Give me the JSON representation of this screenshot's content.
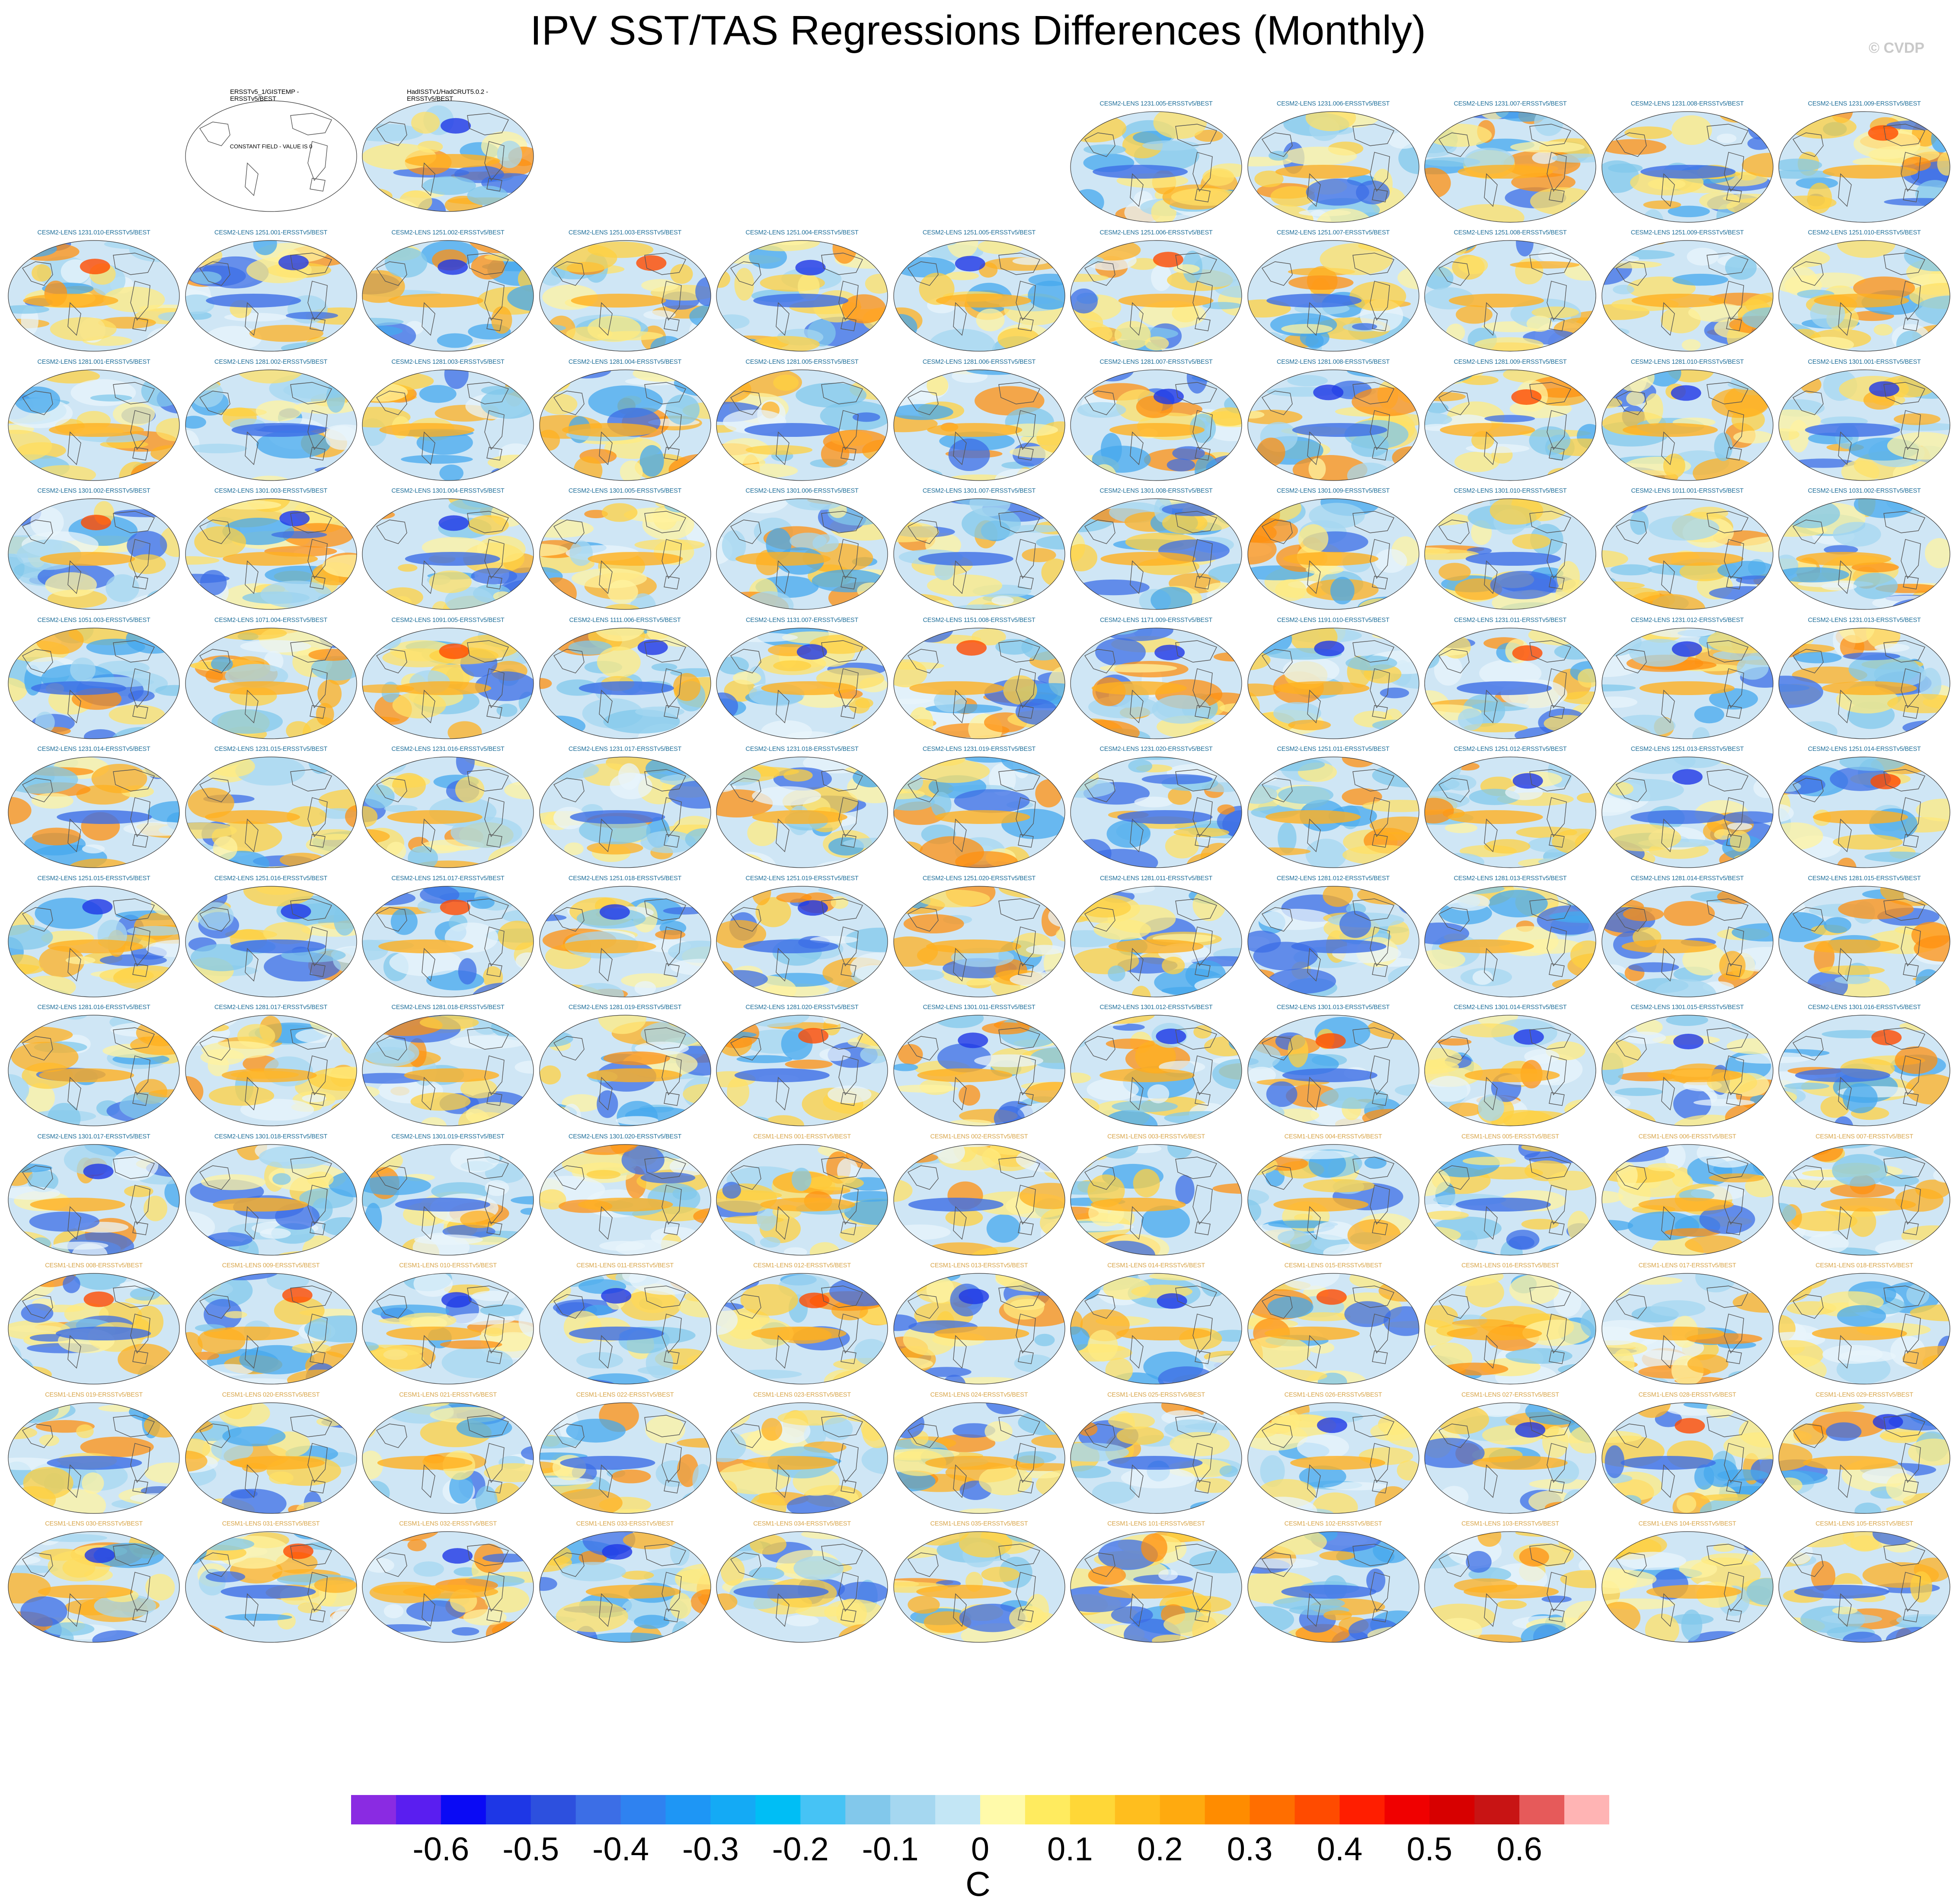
{
  "title": "IPV SST/TAS Regressions Differences (Monthly)",
  "watermark": "© CVDP",
  "colors": {
    "cesm2_label": "#1f6f9a",
    "cesm1_label": "#d8a54a",
    "obs_label": "#000000"
  },
  "observations": [
    {
      "label": "ERSSTv5_1/GISTEMP -\nERSSTv5/BEST",
      "overlay": "CONSTANT FIELD - VALUE IS 0"
    },
    {
      "label": "HadISSTv1/HadCRUT5.0.2 -\nERSSTv5/BEST"
    }
  ],
  "panels": [
    "CESM2-LENS 1231.005-ERSSTv5/BEST",
    "CESM2-LENS 1231.006-ERSSTv5/BEST",
    "CESM2-LENS 1231.007-ERSSTv5/BEST",
    "CESM2-LENS 1231.008-ERSSTv5/BEST",
    "CESM2-LENS 1231.009-ERSSTv5/BEST",
    "CESM2-LENS 1231.010-ERSSTv5/BEST",
    "CESM2-LENS 1251.001-ERSSTv5/BEST",
    "CESM2-LENS 1251.002-ERSSTv5/BEST",
    "CESM2-LENS 1251.003-ERSSTv5/BEST",
    "CESM2-LENS 1251.004-ERSSTv5/BEST",
    "CESM2-LENS 1251.005-ERSSTv5/BEST",
    "CESM2-LENS 1251.006-ERSSTv5/BEST",
    "CESM2-LENS 1251.007-ERSSTv5/BEST",
    "CESM2-LENS 1251.008-ERSSTv5/BEST",
    "CESM2-LENS 1251.009-ERSSTv5/BEST",
    "CESM2-LENS 1251.010-ERSSTv5/BEST",
    "CESM2-LENS 1281.001-ERSSTv5/BEST",
    "CESM2-LENS 1281.002-ERSSTv5/BEST",
    "CESM2-LENS 1281.003-ERSSTv5/BEST",
    "CESM2-LENS 1281.004-ERSSTv5/BEST",
    "CESM2-LENS 1281.005-ERSSTv5/BEST",
    "CESM2-LENS 1281.006-ERSSTv5/BEST",
    "CESM2-LENS 1281.007-ERSSTv5/BEST",
    "CESM2-LENS 1281.008-ERSSTv5/BEST",
    "CESM2-LENS 1281.009-ERSSTv5/BEST",
    "CESM2-LENS 1281.010-ERSSTv5/BEST",
    "CESM2-LENS 1301.001-ERSSTv5/BEST",
    "CESM2-LENS 1301.002-ERSSTv5/BEST",
    "CESM2-LENS 1301.003-ERSSTv5/BEST",
    "CESM2-LENS 1301.004-ERSSTv5/BEST",
    "CESM2-LENS 1301.005-ERSSTv5/BEST",
    "CESM2-LENS 1301.006-ERSSTv5/BEST",
    "CESM2-LENS 1301.007-ERSSTv5/BEST",
    "CESM2-LENS 1301.008-ERSSTv5/BEST",
    "CESM2-LENS 1301.009-ERSSTv5/BEST",
    "CESM2-LENS 1301.010-ERSSTv5/BEST",
    "CESM2-LENS 1011.001-ERSSTv5/BEST",
    "CESM2-LENS 1031.002-ERSSTv5/BEST",
    "CESM2-LENS 1051.003-ERSSTv5/BEST",
    "CESM2-LENS 1071.004-ERSSTv5/BEST",
    "CESM2-LENS 1091.005-ERSSTv5/BEST",
    "CESM2-LENS 1111.006-ERSSTv5/BEST",
    "CESM2-LENS 1131.007-ERSSTv5/BEST",
    "CESM2-LENS 1151.008-ERSSTv5/BEST",
    "CESM2-LENS 1171.009-ERSSTv5/BEST",
    "CESM2-LENS 1191.010-ERSSTv5/BEST",
    "CESM2-LENS 1231.011-ERSSTv5/BEST",
    "CESM2-LENS 1231.012-ERSSTv5/BEST",
    "CESM2-LENS 1231.013-ERSSTv5/BEST",
    "CESM2-LENS 1231.014-ERSSTv5/BEST",
    "CESM2-LENS 1231.015-ERSSTv5/BEST",
    "CESM2-LENS 1231.016-ERSSTv5/BEST",
    "CESM2-LENS 1231.017-ERSSTv5/BEST",
    "CESM2-LENS 1231.018-ERSSTv5/BEST",
    "CESM2-LENS 1231.019-ERSSTv5/BEST",
    "CESM2-LENS 1231.020-ERSSTv5/BEST",
    "CESM2-LENS 1251.011-ERSSTv5/BEST",
    "CESM2-LENS 1251.012-ERSSTv5/BEST",
    "CESM2-LENS 1251.013-ERSSTv5/BEST",
    "CESM2-LENS 1251.014-ERSSTv5/BEST",
    "CESM2-LENS 1251.015-ERSSTv5/BEST",
    "CESM2-LENS 1251.016-ERSSTv5/BEST",
    "CESM2-LENS 1251.017-ERSSTv5/BEST",
    "CESM2-LENS 1251.018-ERSSTv5/BEST",
    "CESM2-LENS 1251.019-ERSSTv5/BEST",
    "CESM2-LENS 1251.020-ERSSTv5/BEST",
    "CESM2-LENS 1281.011-ERSSTv5/BEST",
    "CESM2-LENS 1281.012-ERSSTv5/BEST",
    "CESM2-LENS 1281.013-ERSSTv5/BEST",
    "CESM2-LENS 1281.014-ERSSTv5/BEST",
    "CESM2-LENS 1281.015-ERSSTv5/BEST",
    "CESM2-LENS 1281.016-ERSSTv5/BEST",
    "CESM2-LENS 1281.017-ERSSTv5/BEST",
    "CESM2-LENS 1281.018-ERSSTv5/BEST",
    "CESM2-LENS 1281.019-ERSSTv5/BEST",
    "CESM2-LENS 1281.020-ERSSTv5/BEST",
    "CESM2-LENS 1301.011-ERSSTv5/BEST",
    "CESM2-LENS 1301.012-ERSSTv5/BEST",
    "CESM2-LENS 1301.013-ERSSTv5/BEST",
    "CESM2-LENS 1301.014-ERSSTv5/BEST",
    "CESM2-LENS 1301.015-ERSSTv5/BEST",
    "CESM2-LENS 1301.016-ERSSTv5/BEST",
    "CESM2-LENS 1301.017-ERSSTv5/BEST",
    "CESM2-LENS 1301.018-ERSSTv5/BEST",
    "CESM2-LENS 1301.019-ERSSTv5/BEST",
    "CESM2-LENS 1301.020-ERSSTv5/BEST",
    "CESM1-LENS 001-ERSSTv5/BEST",
    "CESM1-LENS 002-ERSSTv5/BEST",
    "CESM1-LENS 003-ERSSTv5/BEST",
    "CESM1-LENS 004-ERSSTv5/BEST",
    "CESM1-LENS 005-ERSSTv5/BEST",
    "CESM1-LENS 006-ERSSTv5/BEST",
    "CESM1-LENS 007-ERSSTv5/BEST",
    "CESM1-LENS 008-ERSSTv5/BEST",
    "CESM1-LENS 009-ERSSTv5/BEST",
    "CESM1-LENS 010-ERSSTv5/BEST",
    "CESM1-LENS 011-ERSSTv5/BEST",
    "CESM1-LENS 012-ERSSTv5/BEST",
    "CESM1-LENS 013-ERSSTv5/BEST",
    "CESM1-LENS 014-ERSSTv5/BEST",
    "CESM1-LENS 015-ERSSTv5/BEST",
    "CESM1-LENS 016-ERSSTv5/BEST",
    "CESM1-LENS 017-ERSSTv5/BEST",
    "CESM1-LENS 018-ERSSTv5/BEST",
    "CESM1-LENS 019-ERSSTv5/BEST",
    "CESM1-LENS 020-ERSSTv5/BEST",
    "CESM1-LENS 021-ERSSTv5/BEST",
    "CESM1-LENS 022-ERSSTv5/BEST",
    "CESM1-LENS 023-ERSSTv5/BEST",
    "CESM1-LENS 024-ERSSTv5/BEST",
    "CESM1-LENS 025-ERSSTv5/BEST",
    "CESM1-LENS 026-ERSSTv5/BEST",
    "CESM1-LENS 027-ERSSTv5/BEST",
    "CESM1-LENS 028-ERSSTv5/BEST",
    "CESM1-LENS 029-ERSSTv5/BEST",
    "CESM1-LENS 030-ERSSTv5/BEST",
    "CESM1-LENS 031-ERSSTv5/BEST",
    "CESM1-LENS 032-ERSSTv5/BEST",
    "CESM1-LENS 033-ERSSTv5/BEST",
    "CESM1-LENS 034-ERSSTv5/BEST",
    "CESM1-LENS 035-ERSSTv5/BEST",
    "CESM1-LENS 101-ERSSTv5/BEST",
    "CESM1-LENS 102-ERSSTv5/BEST",
    "CESM1-LENS 103-ERSSTv5/BEST",
    "CESM1-LENS 104-ERSSTv5/BEST",
    "CESM1-LENS 105-ERSSTv5/BEST"
  ],
  "colorbar": {
    "colors": [
      "#8a2be2",
      "#5a1ef0",
      "#0a0af5",
      "#1e37e6",
      "#2d50de",
      "#3c6ee6",
      "#2f82f0",
      "#1e96f5",
      "#14aaf5",
      "#00bef5",
      "#46c3f5",
      "#82c8eb",
      "#a5d7f0",
      "#c3e6f5",
      "#fffaaa",
      "#ffeb5f",
      "#ffd737",
      "#ffbe1e",
      "#ffaa0f",
      "#ff8c00",
      "#ff6e00",
      "#ff4b00",
      "#ff1e00",
      "#f00000",
      "#d70000",
      "#c81414",
      "#e65a5a",
      "#ffb4b4"
    ],
    "tick_labels": [
      "-0.6",
      "-0.5",
      "-0.4",
      "-0.3",
      "-0.2",
      "-0.1",
      "0",
      "0.1",
      "0.2",
      "0.3",
      "0.4",
      "0.5",
      "0.6"
    ],
    "unit": "C"
  }
}
